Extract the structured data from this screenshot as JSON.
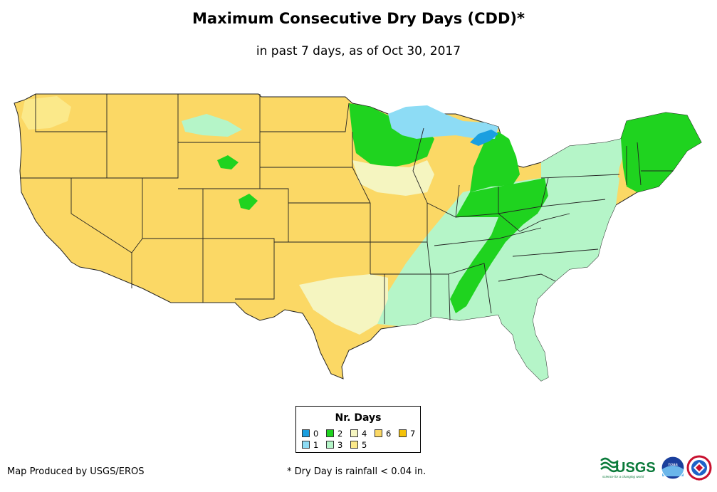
{
  "title": "Maximum Consecutive Dry Days (CDD)*",
  "subtitle": "in past 7 days, as of Oct 30, 2017",
  "legend": {
    "title": "Nr. Days",
    "items": [
      {
        "label": "0",
        "color": "#1a9fe0"
      },
      {
        "label": "1",
        "color": "#8ddcf5"
      },
      {
        "label": "2",
        "color": "#1fd31f"
      },
      {
        "label": "3",
        "color": "#b5f5c8"
      },
      {
        "label": "4",
        "color": "#f5f5c0"
      },
      {
        "label": "5",
        "color": "#fbe98a"
      },
      {
        "label": "6",
        "color": "#fbd865"
      },
      {
        "label": "7",
        "color": "#f4c20a"
      }
    ]
  },
  "footer": {
    "credit": "Map Produced by USGS/EROS",
    "note": "* Dry Day is rainfall < 0.04 in."
  },
  "logos": {
    "usgs": "USGS",
    "usgs_tagline": "science for a changing world",
    "noaa": "noaa",
    "nws": "NWS"
  }
}
